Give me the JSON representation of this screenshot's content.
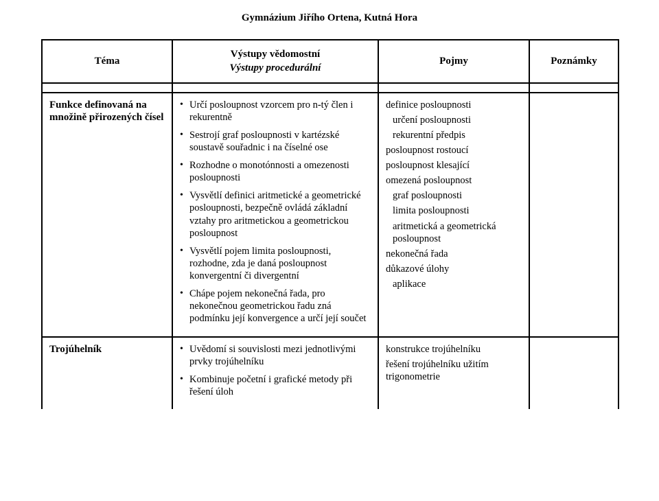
{
  "school_header": "Gymnázium Jiřího Ortena, Kutná Hora",
  "columns": {
    "c1": "Téma",
    "c2_top": "Výstupy vědomostní",
    "c2_bottom": "Výstupy procedurální",
    "c3": "Pojmy",
    "c4": "Poznámky"
  },
  "row1": {
    "topic_l1": "Funkce definovaná na",
    "topic_l2": "množině přirozených čísel",
    "bullets": [
      "Určí posloupnost vzorcem pro n-tý člen i rekurentně",
      "Sestrojí graf posloupnosti v kartézské soustavě souřadnic i na číselné ose",
      "Rozhodne o monotónnosti a omezenosti posloupnosti",
      "Vysvětlí definici aritmetické a geometrické posloupnosti, bezpečně ovládá základní vztahy pro aritmetickou a geometrickou posloupnost",
      "Vysvětlí pojem limita posloupnosti, rozhodne, zda je daná posloupnost konvergentní či divergentní",
      "Chápe pojem nekonečná řada, pro nekonečnou geometrickou řadu zná podmínku její konvergence a určí její součet"
    ],
    "pojmy": [
      {
        "text": "definice posloupnosti",
        "indent": false
      },
      {
        "text": "určení posloupnosti",
        "indent": true
      },
      {
        "text": "rekurentní předpis",
        "indent": true
      },
      {
        "text": "posloupnost rostoucí",
        "indent": false
      },
      {
        "text": "posloupnost  klesající",
        "indent": false
      },
      {
        "text": "omezená posloupnost",
        "indent": false
      },
      {
        "text": "graf posloupnosti",
        "indent": true
      },
      {
        "text": "limita posloupnosti",
        "indent": true
      },
      {
        "text": "aritmetická a geometrická posloupnost",
        "indent": true
      },
      {
        "text": "nekonečná řada",
        "indent": false
      },
      {
        "text": "důkazové úlohy",
        "indent": false
      },
      {
        "text": "aplikace",
        "indent": true
      }
    ]
  },
  "row2": {
    "topic": "Trojúhelník",
    "bullets": [
      "Uvědomí si souvislosti mezi jednotlivými prvky trojúhelníku",
      "Kombinuje početní i grafické metody při řešení úloh"
    ],
    "pojmy": [
      {
        "text": "konstrukce trojúhelníku",
        "indent": false
      },
      {
        "text": "řešení trojúhelníku užitím trigonometrie",
        "indent": false
      }
    ]
  }
}
